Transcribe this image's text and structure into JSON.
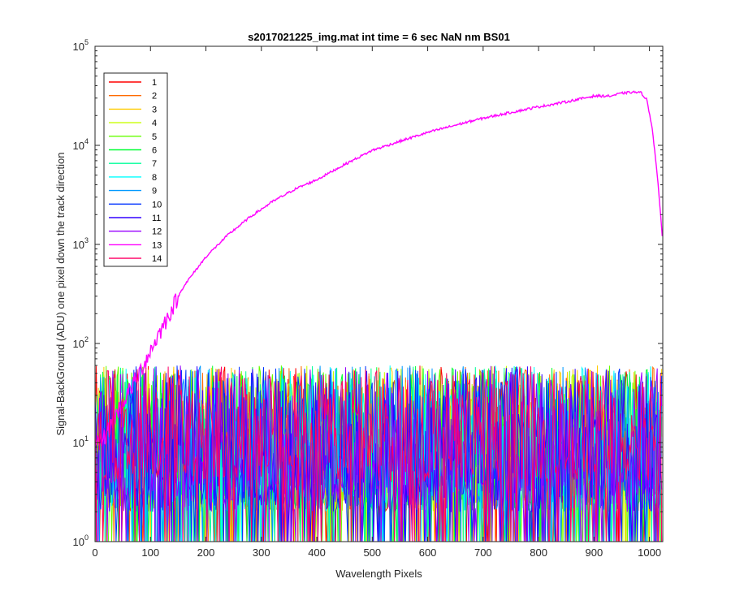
{
  "chart_data": {
    "type": "line",
    "title": "s2017021225_img.mat int time = 6 sec  NaN nm BS01",
    "xlabel": "Wavelength Pixels",
    "ylabel": "Signal-BackGround (ADU) one pixel down the track direction",
    "xlim": [
      0,
      1024
    ],
    "ylim": [
      1,
      100000
    ],
    "yscale": "log",
    "grid": false,
    "legend_position": "top-left",
    "x_ticks": [
      0,
      100,
      200,
      300,
      400,
      500,
      600,
      700,
      800,
      900,
      1000
    ],
    "x_tick_labels": [
      "0",
      "100",
      "200",
      "300",
      "400",
      "500",
      "600",
      "700",
      "800",
      "900",
      "1000"
    ],
    "y_ticks": [
      1,
      10,
      100,
      1000,
      10000,
      100000
    ],
    "y_tick_labels": [
      {
        "base": "10",
        "exp": "0"
      },
      {
        "base": "10",
        "exp": "1"
      },
      {
        "base": "10",
        "exp": "2"
      },
      {
        "base": "10",
        "exp": "3"
      },
      {
        "base": "10",
        "exp": "4"
      },
      {
        "base": "10",
        "exp": "5"
      }
    ],
    "series": [
      {
        "name": "1",
        "color": "#ff0000",
        "kind": "noise",
        "x": [
          0,
          1023
        ],
        "level": [
          2,
          60
        ]
      },
      {
        "name": "2",
        "color": "#ff6a00",
        "kind": "noise",
        "x": [
          0,
          1023
        ],
        "level": [
          2,
          60
        ]
      },
      {
        "name": "3",
        "color": "#ffcc00",
        "kind": "noise",
        "x": [
          0,
          1023
        ],
        "level": [
          2,
          60
        ]
      },
      {
        "name": "4",
        "color": "#c8ff00",
        "kind": "noise",
        "x": [
          0,
          1023
        ],
        "level": [
          2,
          60
        ]
      },
      {
        "name": "5",
        "color": "#66ff00",
        "kind": "noise",
        "x": [
          0,
          1023
        ],
        "level": [
          2,
          60
        ]
      },
      {
        "name": "6",
        "color": "#00ff33",
        "kind": "noise",
        "x": [
          0,
          1023
        ],
        "level": [
          2,
          60
        ]
      },
      {
        "name": "7",
        "color": "#00ff99",
        "kind": "noise",
        "x": [
          0,
          1023
        ],
        "level": [
          2,
          60
        ]
      },
      {
        "name": "8",
        "color": "#00ffff",
        "kind": "noise",
        "x": [
          0,
          1023
        ],
        "level": [
          2,
          60
        ]
      },
      {
        "name": "9",
        "color": "#0099ff",
        "kind": "noise",
        "x": [
          0,
          1023
        ],
        "level": [
          2,
          60
        ]
      },
      {
        "name": "10",
        "color": "#0033ff",
        "kind": "noise",
        "x": [
          0,
          1023
        ],
        "level": [
          2,
          60
        ]
      },
      {
        "name": "11",
        "color": "#3300ff",
        "kind": "noise",
        "x": [
          0,
          1023
        ],
        "level": [
          2,
          60
        ]
      },
      {
        "name": "12",
        "color": "#9900ff",
        "kind": "noise",
        "x": [
          0,
          1023
        ],
        "level": [
          2,
          60
        ]
      },
      {
        "name": "13",
        "color": "#ff00ff",
        "kind": "signal",
        "x": [
          0,
          20,
          40,
          60,
          80,
          100,
          130,
          160,
          200,
          240,
          280,
          320,
          360,
          400,
          450,
          500,
          550,
          600,
          650,
          700,
          750,
          800,
          850,
          900,
          930,
          950,
          970,
          985,
          995,
          1005,
          1015,
          1023
        ],
        "y": [
          9,
          12,
          20,
          32,
          50,
          85,
          180,
          380,
          750,
          1250,
          1900,
          2700,
          3600,
          4500,
          6400,
          8900,
          11000,
          13500,
          16000,
          18800,
          21500,
          24500,
          27500,
          31500,
          31500,
          33500,
          34500,
          34000,
          29000,
          15000,
          4500,
          1200
        ]
      },
      {
        "name": "14",
        "color": "#ff0066",
        "kind": "noise",
        "x": [
          0,
          1023
        ],
        "level": [
          4,
          60
        ]
      }
    ]
  }
}
